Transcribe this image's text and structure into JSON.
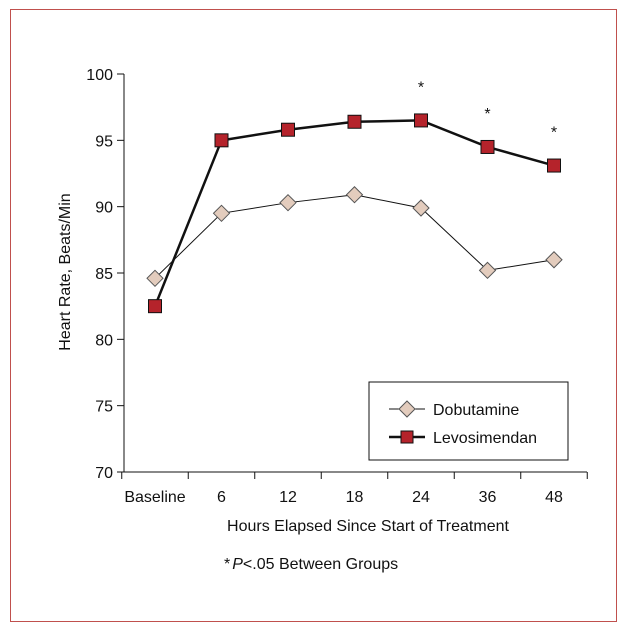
{
  "chart_data": {
    "type": "line",
    "title": "",
    "xlabel": "Hours Elapsed Since Start of Treatment",
    "ylabel": "Heart Rate, Beats/Min",
    "categories": [
      "Baseline",
      "6",
      "12",
      "18",
      "24",
      "36",
      "48"
    ],
    "ylim": [
      70,
      100
    ],
    "yticks": [
      70,
      75,
      80,
      85,
      90,
      95,
      100
    ],
    "grid": false,
    "legend_position": "bottom-right",
    "series": [
      {
        "name": "Dobutamine",
        "marker": "diamond",
        "color": "#e3ccbd",
        "values": [
          84.6,
          89.5,
          90.3,
          90.9,
          89.9,
          85.2,
          86.0
        ]
      },
      {
        "name": "Levosimendan",
        "marker": "square",
        "color": "#b5232b",
        "values": [
          82.5,
          95.0,
          95.8,
          96.4,
          96.5,
          94.5,
          93.1
        ]
      }
    ],
    "significance_marker": "*",
    "significant_categories": [
      "24",
      "36",
      "48"
    ],
    "footnote": {
      "star": "*",
      "p": "P",
      "rest": "<.05 Between Groups"
    }
  }
}
